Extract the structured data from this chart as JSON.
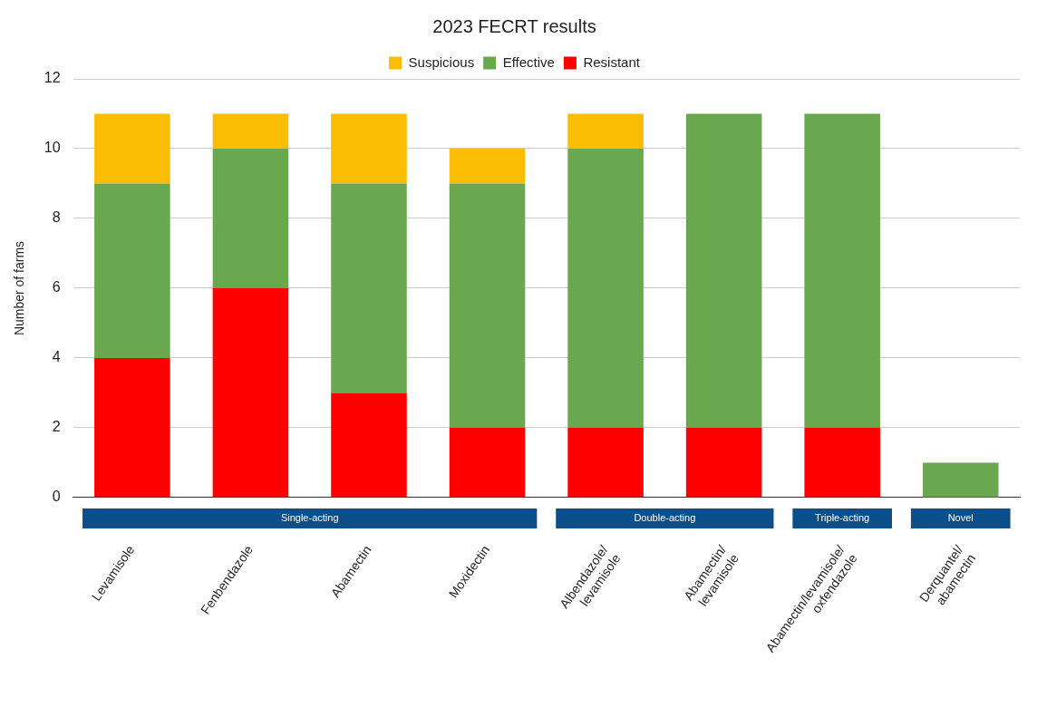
{
  "chart_data": {
    "type": "bar",
    "title": "2023 FECRT results",
    "ylabel": "Number of farms",
    "categories": [
      "Levamisole",
      "Fenbendazole",
      "Abamectin",
      "Moxidectin",
      "Albendazole/levamisole",
      "Abamectin/levamisole",
      "Abamectin/levamisole/oxfendazole",
      "Derquantel/abamectin"
    ],
    "stacked": true,
    "series": [
      {
        "name": "Resistant",
        "color": "#ff0000",
        "values": [
          4,
          6,
          3,
          2,
          2,
          2,
          2,
          0
        ]
      },
      {
        "name": "Effective",
        "color": "#6aa84f",
        "values": [
          5,
          4,
          6,
          7,
          8,
          9,
          9,
          1
        ]
      },
      {
        "name": "Suspicious",
        "color": "#fbbc04",
        "values": [
          2,
          1,
          2,
          1,
          1,
          0,
          0,
          0
        ]
      }
    ],
    "ylim": [
      0,
      12
    ],
    "yticks": [
      0,
      2,
      4,
      6,
      8,
      10,
      12
    ],
    "grid": "y",
    "legend": "top",
    "annotations": [
      "Single-acting",
      "Double-acting",
      "Triple-acting",
      "Novel"
    ]
  }
}
